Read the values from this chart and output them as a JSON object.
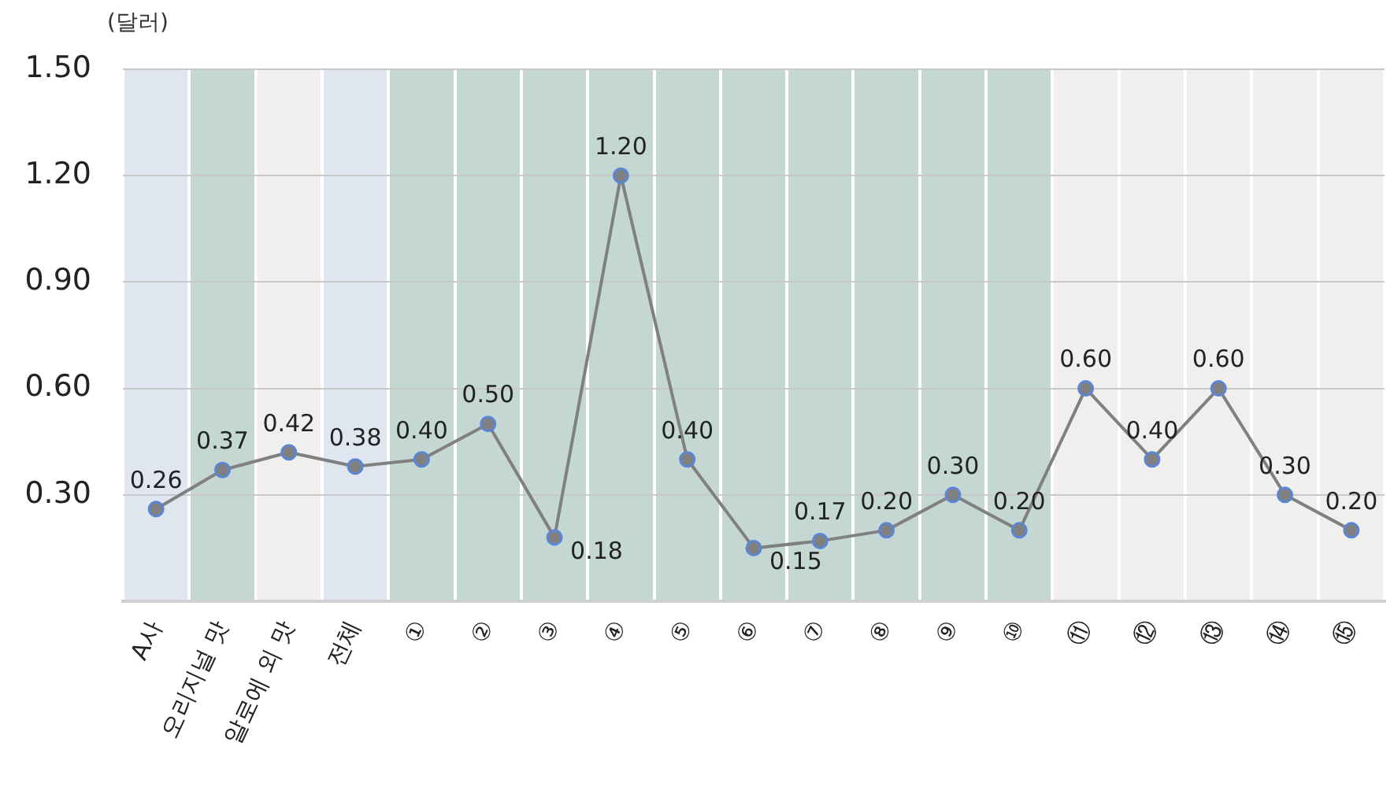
{
  "chart_data": {
    "type": "line",
    "ylabel": "(달러)",
    "categories": [
      "A사",
      "오리지널 맛",
      "알로에 외 맛",
      "전체",
      "①",
      "②",
      "③",
      "④",
      "⑤",
      "⑥",
      "⑦",
      "⑧",
      "⑨",
      "⑩",
      "⑪",
      "⑫",
      "⑬",
      "⑭",
      "⑮"
    ],
    "values": [
      0.26,
      0.37,
      0.42,
      0.38,
      0.4,
      0.5,
      0.18,
      1.2,
      0.4,
      0.15,
      0.17,
      0.2,
      0.3,
      0.2,
      0.6,
      0.4,
      0.6,
      0.3,
      0.2
    ],
    "value_labels": [
      "0.26",
      "0.37",
      "0.42",
      "0.38",
      "0.40",
      "0.50",
      "0.18",
      "1.20",
      "0.40",
      "0.15",
      "0.17",
      "0.20",
      "0.30",
      "0.20",
      "0.60",
      "0.40",
      "0.60",
      "0.30",
      "0.20"
    ],
    "color": "#808080",
    "marker": "circle",
    "line_style": "solid",
    "grid": true,
    "ylim": [
      0,
      1.5
    ],
    "yticks": [
      {
        "value": 0.3,
        "label": "0.30"
      },
      {
        "value": 0.6,
        "label": "0.60"
      },
      {
        "value": 0.9,
        "label": "0.90"
      },
      {
        "value": 1.2,
        "label": "1.20"
      },
      {
        "value": 1.5,
        "label": "1.50"
      }
    ],
    "bands": [
      {
        "axis": "x",
        "from": "A사",
        "to": "A사",
        "color": "#dfe6f0"
      },
      {
        "axis": "x",
        "from": "오리지널 맛",
        "to": "오리지널 맛",
        "color": "#c4d7d3"
      },
      {
        "axis": "x",
        "from": "알로에 외 맛",
        "to": "알로에 외 맛",
        "color": "#f0efee"
      },
      {
        "axis": "x",
        "from": "전체",
        "to": "전체",
        "color": "#dfe6f0"
      },
      {
        "axis": "x",
        "from": "①",
        "to": "⑩",
        "color": "#c4d7d3"
      },
      {
        "axis": "x",
        "from": "⑪",
        "to": "⑮",
        "color": "#f0efee"
      }
    ]
  }
}
